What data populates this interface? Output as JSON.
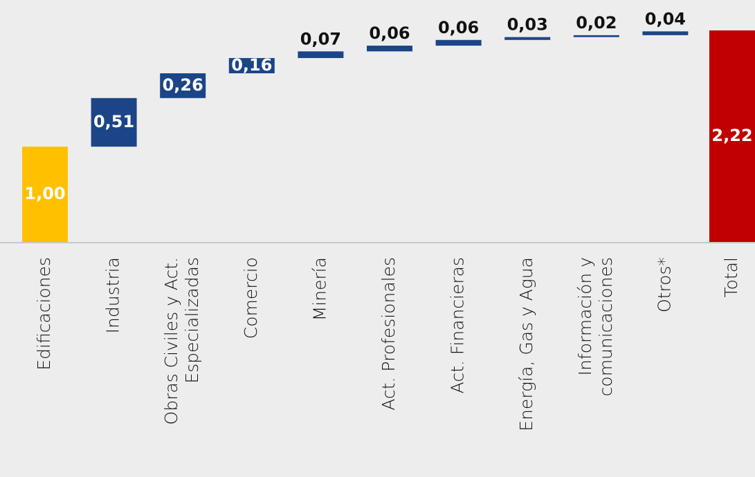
{
  "chart_data": {
    "type": "waterfall",
    "categories": [
      "Edificaciones",
      "Industria",
      "Obras Civiles y Act.\nEspecializadas",
      "Comercio",
      "Minería",
      "Act. Profesionales",
      "Act. Financieras",
      "Energía, Gas y Agua",
      "Información y\ncomunicaciones",
      "Otros*",
      "Total"
    ],
    "values": [
      1.0,
      0.51,
      0.26,
      0.16,
      0.07,
      0.06,
      0.06,
      0.03,
      0.02,
      0.04,
      2.22
    ],
    "value_labels": [
      "1,00",
      "0,51",
      "0,26",
      "0,16",
      "0,07",
      "0,06",
      "0,06",
      "0,03",
      "0,02",
      "0,04",
      "2,22"
    ],
    "colors": [
      "#ffc000",
      "#1c4587",
      "#1c4587",
      "#1c4587",
      "#1c4587",
      "#1c4587",
      "#1c4587",
      "#1c4587",
      "#1c4587",
      "#1c4587",
      "#c00000"
    ],
    "last_is_total": true
  }
}
